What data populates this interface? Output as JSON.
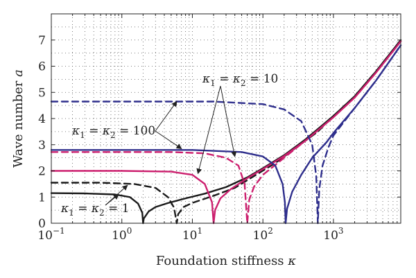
{
  "chart_data": {
    "type": "line",
    "title": "",
    "xlabel": "Foundation stiffness κ",
    "ylabel": "Wave number a",
    "xscale": "log",
    "xlim": [
      0.1,
      9000
    ],
    "ylim": [
      0,
      8
    ],
    "grid": true,
    "grid_style": "dotted",
    "x_ticks": [
      {
        "value": 0.1,
        "base": "10",
        "exp": "−1"
      },
      {
        "value": 1,
        "base": "10",
        "exp": "0"
      },
      {
        "value": 10,
        "base": "10",
        "exp": "1"
      },
      {
        "value": 100,
        "base": "10",
        "exp": "2"
      },
      {
        "value": 1000,
        "base": "10",
        "exp": "3"
      }
    ],
    "y_ticks": [
      "0",
      "1",
      "2",
      "3",
      "4",
      "5",
      "6",
      "7"
    ],
    "y_tick_values": [
      0,
      1,
      2,
      3,
      4,
      5,
      6,
      7
    ],
    "colors": {
      "black": "#1a1a1a",
      "magenta": "#cc1f6e",
      "navy": "#2e2e8c"
    },
    "series": [
      {
        "color": "black",
        "dash": false,
        "points": [
          [
            0.1,
            1.15
          ],
          [
            0.3,
            1.14
          ],
          [
            0.8,
            1.1
          ],
          [
            1.3,
            1.0
          ],
          [
            1.7,
            0.75
          ],
          [
            1.95,
            0.4
          ],
          [
            2.0,
            0.0
          ],
          [
            2.05,
            0.18
          ],
          [
            2.4,
            0.45
          ],
          [
            3.0,
            0.62
          ],
          [
            4.5,
            0.77
          ],
          [
            8,
            0.95
          ],
          [
            15,
            1.13
          ],
          [
            30,
            1.38
          ],
          [
            60,
            1.75
          ],
          [
            100,
            2.1
          ],
          [
            200,
            2.6
          ],
          [
            400,
            3.2
          ],
          [
            700,
            3.75
          ],
          [
            1000,
            4.1
          ],
          [
            2000,
            4.85
          ],
          [
            4000,
            5.8
          ],
          [
            9000,
            7.0
          ]
        ]
      },
      {
        "color": "black",
        "dash": true,
        "points": [
          [
            0.1,
            1.55
          ],
          [
            0.5,
            1.55
          ],
          [
            1.5,
            1.5
          ],
          [
            3.0,
            1.35
          ],
          [
            4.5,
            1.0
          ],
          [
            5.5,
            0.6
          ],
          [
            6.0,
            0.0
          ],
          [
            6.3,
            0.35
          ],
          [
            7.5,
            0.62
          ],
          [
            10,
            0.78
          ],
          [
            20,
            1.05
          ],
          [
            40,
            1.35
          ],
          [
            80,
            1.85
          ],
          [
            150,
            2.3
          ],
          [
            300,
            2.9
          ],
          [
            600,
            3.5
          ],
          [
            1000,
            4.1
          ],
          [
            2000,
            4.85
          ],
          [
            4000,
            5.8
          ],
          [
            9000,
            7.0
          ]
        ]
      },
      {
        "color": "magenta",
        "dash": false,
        "points": [
          [
            0.1,
            2.0
          ],
          [
            1,
            2.0
          ],
          [
            5,
            1.97
          ],
          [
            10,
            1.85
          ],
          [
            15,
            1.5
          ],
          [
            19,
            0.8
          ],
          [
            20,
            0.0
          ],
          [
            21,
            0.5
          ],
          [
            25,
            0.95
          ],
          [
            35,
            1.3
          ],
          [
            60,
            1.72
          ],
          [
            100,
            2.07
          ],
          [
            200,
            2.57
          ],
          [
            400,
            3.15
          ],
          [
            700,
            3.7
          ],
          [
            1000,
            4.05
          ],
          [
            2000,
            4.8
          ],
          [
            4000,
            5.75
          ],
          [
            9000,
            6.95
          ]
        ]
      },
      {
        "color": "magenta",
        "dash": true,
        "points": [
          [
            0.1,
            2.72
          ],
          [
            5,
            2.72
          ],
          [
            15,
            2.67
          ],
          [
            30,
            2.5
          ],
          [
            45,
            2.2
          ],
          [
            55,
            1.5
          ],
          [
            60,
            0.0
          ],
          [
            64,
            0.9
          ],
          [
            75,
            1.4
          ],
          [
            100,
            1.85
          ],
          [
            200,
            2.5
          ],
          [
            400,
            3.15
          ],
          [
            700,
            3.7
          ],
          [
            1000,
            4.05
          ],
          [
            2000,
            4.8
          ],
          [
            4000,
            5.75
          ],
          [
            9000,
            6.95
          ]
        ]
      },
      {
        "color": "navy",
        "dash": false,
        "points": [
          [
            0.1,
            2.8
          ],
          [
            10,
            2.8
          ],
          [
            50,
            2.72
          ],
          [
            100,
            2.55
          ],
          [
            150,
            2.2
          ],
          [
            190,
            1.5
          ],
          [
            205,
            0.8
          ],
          [
            210,
            0.0
          ],
          [
            220,
            0.55
          ],
          [
            260,
            1.2
          ],
          [
            350,
            1.85
          ],
          [
            500,
            2.5
          ],
          [
            800,
            3.1
          ],
          [
            1000,
            3.45
          ],
          [
            2000,
            4.4
          ],
          [
            4000,
            5.45
          ],
          [
            9000,
            6.8
          ]
        ]
      },
      {
        "color": "navy",
        "dash": true,
        "points": [
          [
            0.1,
            4.65
          ],
          [
            20,
            4.65
          ],
          [
            100,
            4.55
          ],
          [
            200,
            4.35
          ],
          [
            350,
            3.9
          ],
          [
            500,
            3.0
          ],
          [
            570,
            1.8
          ],
          [
            600,
            0.0
          ],
          [
            630,
            1.3
          ],
          [
            700,
            2.2
          ],
          [
            850,
            2.9
          ],
          [
            1000,
            3.35
          ],
          [
            2000,
            4.4
          ],
          [
            4000,
            5.45
          ],
          [
            9000,
            6.8
          ]
        ]
      }
    ],
    "annotations": [
      {
        "name": "annot-k10",
        "sub": "1",
        "sub2": "2",
        "value": "10",
        "label_at": [
          500,
          300
        ],
        "arrow_tails": [
          [
            500,
            300
          ],
          [
            500,
            300
          ]
        ],
        "arrow_heads": [
          [
            12,
            1.9
          ],
          [
            40,
            2.55
          ]
        ]
      },
      {
        "name": "annot-k100",
        "sub": "1",
        "sub2": "2",
        "value": "100",
        "label_at": [
          190,
          360
        ],
        "arrow_tails": [
          [
            225,
            360
          ],
          [
            225,
            360
          ]
        ],
        "arrow_heads": [
          [
            6,
            4.65
          ],
          [
            7,
            2.85
          ]
        ]
      },
      {
        "name": "annot-k1",
        "sub": "1",
        "sub2": "2",
        "value": "1",
        "label_at": [
          150,
          478
        ],
        "arrow_tails": [
          [
            190,
            478
          ],
          [
            190,
            478
          ]
        ],
        "arrow_heads": [
          [
            1.2,
            1.45
          ],
          [
            0.9,
            1.1
          ]
        ]
      }
    ]
  }
}
